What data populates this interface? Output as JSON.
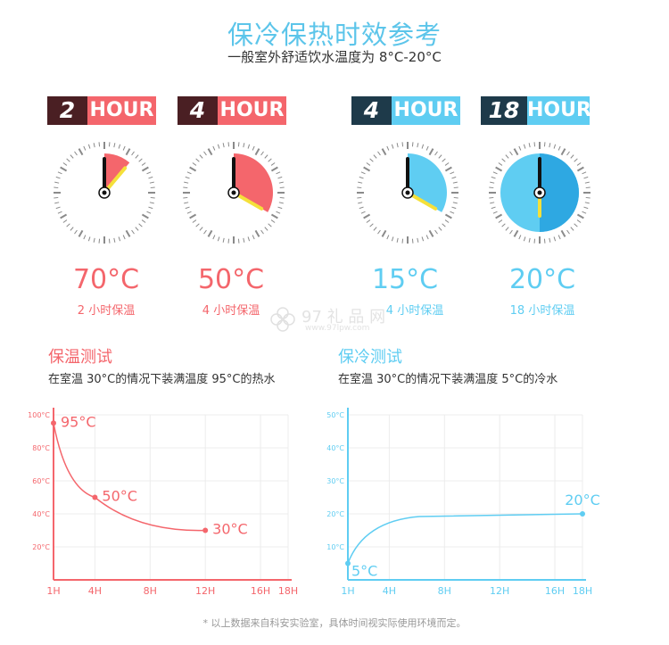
{
  "header": {
    "title": "保冷保热时效参考",
    "subtitle": "一般室外舒适饮水温度为 8°C-20°C"
  },
  "cards": [
    {
      "hours": "2",
      "unit": "HOUR",
      "temp": "70°C",
      "label": "2 小时保温",
      "theme": "warm",
      "fill_fraction": 0.111
    },
    {
      "hours": "4",
      "unit": "HOUR",
      "temp": "50°C",
      "label": "4 小时保温",
      "theme": "warm",
      "fill_fraction": 0.333
    },
    {
      "hours": "4",
      "unit": "HOUR",
      "temp": "15°C",
      "label": "4 小时保温",
      "theme": "cool",
      "fill_fraction": 0.333
    },
    {
      "hours": "18",
      "unit": "HOUR",
      "temp": "20°C",
      "label": "18 小时保温",
      "theme": "cool",
      "fill_fraction": 1.0
    }
  ],
  "colors": {
    "warm": "#f4666c",
    "warm_dark": "#4a1f23",
    "cool": "#5fcdf2",
    "cool_dark": "#1e3a4a",
    "hand": "#111111",
    "hand_short": "#f5e03a"
  },
  "watermark": {
    "text": "97 礼 品 网",
    "url": "www.97lpw.com"
  },
  "sections": [
    {
      "title": "保温测试",
      "desc": "在室温 30°C的情况下装满温度 95°C的热水"
    },
    {
      "title": "保冷测试",
      "desc": "在室温 30°C的情况下装满温度 5°C的冷水"
    }
  ],
  "chart_data": [
    {
      "type": "line",
      "x": [
        "1H",
        "4H",
        "8H",
        "12H",
        "16H",
        "18H"
      ],
      "y_ticks": [
        "100°C",
        "80°C",
        "60°C",
        "40°C",
        "20°C"
      ],
      "ylim": [
        0,
        100
      ],
      "points": [
        {
          "x": 1,
          "y": 95,
          "label": "95°C"
        },
        {
          "x": 4,
          "y": 50,
          "label": "50°C"
        },
        {
          "x": 12,
          "y": 30,
          "label": "30°C"
        }
      ],
      "color": "#f4666c",
      "grid": true
    },
    {
      "type": "line",
      "x": [
        "1H",
        "4H",
        "8H",
        "12H",
        "16H",
        "18H"
      ],
      "y_ticks": [
        "50°C",
        "40°C",
        "30°C",
        "20°C",
        "10°C"
      ],
      "ylim": [
        0,
        50
      ],
      "points": [
        {
          "x": 1,
          "y": 5,
          "label": "5°C"
        },
        {
          "x": 18,
          "y": 20,
          "label": "20°C"
        }
      ],
      "color": "#5fcdf2",
      "grid": true
    }
  ],
  "footnote": "* 以上数据来自科安实验室，具体时间视实际使用环境而定。"
}
